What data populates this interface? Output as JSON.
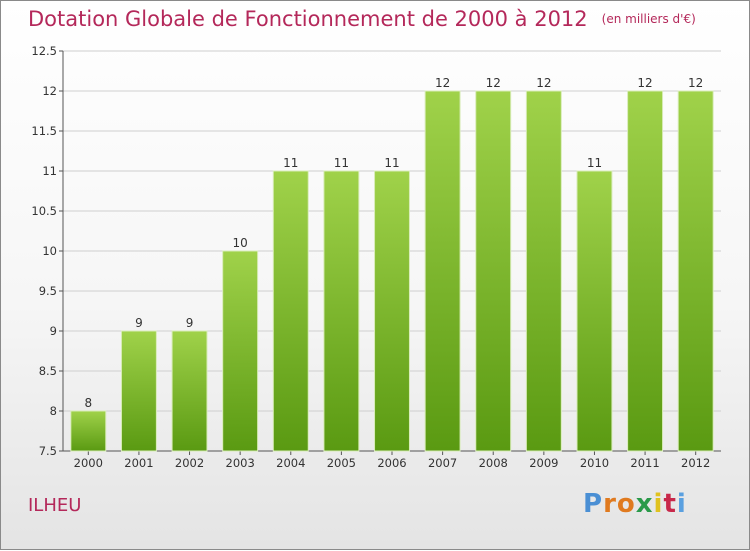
{
  "header": {
    "title": "Dotation Globale de Fonctionnement de 2000 à 2012",
    "unit": "(en milliers d'€)"
  },
  "footer": {
    "commune": "ILHEU",
    "logo": {
      "letters": [
        "P",
        "r",
        "o",
        "x",
        "i",
        "t",
        "i"
      ],
      "colors": [
        "#4a8fd4",
        "#e07a1f",
        "#e07a1f",
        "#2a9a4a",
        "#e0c21f",
        "#c8284a",
        "#5aa0e0"
      ]
    }
  },
  "colors": {
    "bar_top": "#a0d24a",
    "bar_bottom": "#5a9a12",
    "title": "#b4285a"
  },
  "chart_data": {
    "type": "bar",
    "categories": [
      "2000",
      "2001",
      "2002",
      "2003",
      "2004",
      "2005",
      "2006",
      "2007",
      "2008",
      "2009",
      "2010",
      "2011",
      "2012"
    ],
    "values": [
      8,
      9,
      9,
      10,
      11,
      11,
      11,
      12,
      12,
      12,
      11,
      12,
      12
    ],
    "data_labels": [
      "8",
      "9",
      "9",
      "10",
      "11",
      "11",
      "11",
      "12",
      "12",
      "12",
      "11",
      "12",
      "12"
    ],
    "ylim": [
      7.5,
      12.5
    ],
    "yticks": [
      7.5,
      8,
      8.5,
      9,
      9.5,
      10,
      10.5,
      11,
      11.5,
      12,
      12.5
    ],
    "ytick_labels": [
      "7.5",
      "8",
      "8.5",
      "9",
      "9.5",
      "10",
      "10.5",
      "11",
      "11.5",
      "12",
      "12.5"
    ],
    "grid": true,
    "legend": "none"
  }
}
